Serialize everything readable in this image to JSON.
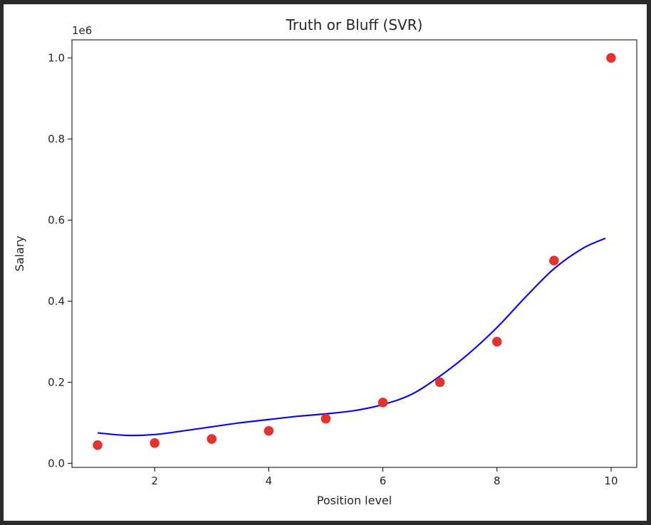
{
  "chart_data": {
    "type": "scatter",
    "title": "Truth or Bluff (SVR)",
    "xlabel": "Position level",
    "ylabel": "Salary",
    "y_offset_label": "1e6",
    "xlim": [
      0.55,
      10.45
    ],
    "ylim": [
      -0.01,
      1.0446
    ],
    "x_ticks": [
      2,
      4,
      6,
      8,
      10
    ],
    "x_tick_labels": [
      "2",
      "4",
      "6",
      "8",
      "10"
    ],
    "y_ticks": [
      0.0,
      0.2,
      0.4,
      0.6,
      0.8,
      1.0
    ],
    "y_tick_labels": [
      "0.0",
      "0.2",
      "0.4",
      "0.6",
      "0.8",
      "1.0"
    ],
    "grid": false,
    "series": [
      {
        "kind": "scatter",
        "color": "#e8312a",
        "x": [
          1,
          2,
          3,
          4,
          5,
          6,
          7,
          8,
          9,
          10
        ],
        "y": [
          0.045,
          0.05,
          0.06,
          0.08,
          0.11,
          0.15,
          0.2,
          0.3,
          0.5,
          1.0
        ]
      },
      {
        "kind": "line",
        "color": "#0a0af0",
        "x": [
          1.0,
          1.5,
          2.0,
          2.5,
          3.0,
          3.5,
          4.0,
          4.5,
          5.0,
          5.5,
          6.0,
          6.5,
          7.0,
          7.5,
          8.0,
          8.5,
          9.0,
          9.5,
          9.9
        ],
        "y": [
          0.075,
          0.069,
          0.071,
          0.08,
          0.09,
          0.1,
          0.108,
          0.116,
          0.122,
          0.13,
          0.145,
          0.17,
          0.215,
          0.27,
          0.335,
          0.41,
          0.48,
          0.53,
          0.555
        ]
      }
    ]
  }
}
